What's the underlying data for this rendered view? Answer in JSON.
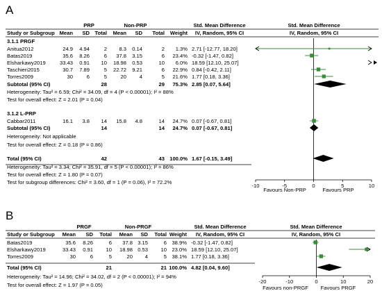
{
  "panels": [
    {
      "letter": "A",
      "group_headers": {
        "exp": "PRP",
        "ctl": "Non-PRP",
        "smd": "Std. Mean Difference",
        "plot": "Std. Mean Difference"
      },
      "col_headers": {
        "study": "Study or Subgroup",
        "mean_e": "Mean",
        "sd_e": "SD",
        "total_e": "Total",
        "mean_c": "Mean",
        "sd_c": "SD",
        "total_c": "Total",
        "weight": "Weight",
        "ci": "IV, Random, 95% CI",
        "plot_ci": "IV, Random, 95% CI"
      },
      "subgroups": [
        {
          "title": "3.1.1 PRGF",
          "studies": [
            {
              "name": "Anitua2012",
              "mean_e": "24.9",
              "sd_e": "4.94",
              "total_e": "2",
              "mean_c": "8.3",
              "sd_c": "0.14",
              "total_c": "2",
              "weight": "1.3%",
              "ci": "2.71 [-12.77, 18.20]"
            },
            {
              "name": "Batas2019",
              "mean_e": "35.6",
              "sd_e": "8.26",
              "total_e": "6",
              "mean_c": "37.8",
              "sd_c": "3.15",
              "total_c": "6",
              "weight": "23.4%",
              "ci": "-0.32 [-1.47, 0.82]"
            },
            {
              "name": "Elsharkawy2019",
              "mean_e": "33.43",
              "sd_e": "0.91",
              "total_e": "10",
              "mean_c": "18.98",
              "sd_c": "0.53",
              "total_c": "10",
              "weight": "6.0%",
              "ci": "18.59 [12.10, 25.07]"
            },
            {
              "name": "Taschieri2015",
              "mean_e": "30.7",
              "sd_e": "7.89",
              "total_e": "5",
              "mean_c": "22.72",
              "sd_c": "9.21",
              "total_c": "6",
              "weight": "22.9%",
              "ci": "0.84 [-0.42, 2.11]"
            },
            {
              "name": "Torres2009",
              "mean_e": "30",
              "sd_e": "6",
              "total_e": "5",
              "mean_c": "20",
              "sd_c": "4",
              "total_c": "5",
              "weight": "21.6%",
              "ci": "1.77 [0.18, 3.36]"
            }
          ],
          "subtotal": {
            "label": "Subtotal (95% CI)",
            "total_e": "28",
            "total_c": "29",
            "weight": "75.3%",
            "ci": "2.85 [0.07, 5.64]"
          },
          "heterogeneity": "Heterogeneity: Tau² = 6.59; Chi² = 34.09, df = 4 (P < 0.00001); I² = 88%",
          "overall_test": "Test for overall effect: Z = 2.01 (P = 0.04)"
        },
        {
          "title": "3.1.2 L-PRP",
          "studies": [
            {
              "name": "Cabbar2011",
              "mean_e": "16.1",
              "sd_e": "3.8",
              "total_e": "14",
              "mean_c": "15.8",
              "sd_c": "4.8",
              "total_c": "14",
              "weight": "24.7%",
              "ci": "0.07 [-0.67, 0.81]"
            }
          ],
          "subtotal": {
            "label": "Subtotal (95% CI)",
            "total_e": "14",
            "total_c": "14",
            "weight": "24.7%",
            "ci": "0.07 [-0.67, 0.81]"
          },
          "heterogeneity": "Heterogeneity: Not applicable",
          "overall_test": "Test for overall effect: Z = 0.18 (P = 0.86)"
        }
      ],
      "total": {
        "label": "Total (95% CI)",
        "total_e": "42",
        "total_c": "43",
        "weight": "100.0%",
        "ci": "1.67 [-0.15, 3.49]"
      },
      "footer": [
        "Heterogeneity: Tau² = 3.34; Chi² = 35.91, df = 5 (P < 0.00001); I² = 86%",
        "Test for overall effect: Z = 1.80 (P = 0.07)",
        "Test for subgroup differences: Chi² = 3.60, df = 1 (P = 0.06), I² = 72.2%"
      ],
      "axis_ticks": [
        "-10",
        "-5",
        "0",
        "5",
        "10"
      ],
      "favours_left": "Favours Non-PRP",
      "favours_right": "Favours PRP"
    },
    {
      "letter": "B",
      "group_headers": {
        "exp": "PRGF",
        "ctl": "Non-PRGF",
        "smd": "Std. Mean Difference",
        "plot": "Std. Mean Difference"
      },
      "col_headers": {
        "study": "Study or Subgroup",
        "mean_e": "Mean",
        "sd_e": "SD",
        "total_e": "Total",
        "mean_c": "Mean",
        "sd_c": "SD",
        "total_c": "Total",
        "weight": "Weight",
        "ci": "IV, Random, 95% CI",
        "plot_ci": "IV, Random, 95% CI"
      },
      "studies": [
        {
          "name": "Batas2019",
          "mean_e": "35.6",
          "sd_e": "8.26",
          "total_e": "6",
          "mean_c": "37.8",
          "sd_c": "3.15",
          "total_c": "6",
          "weight": "38.9%",
          "ci": "-0.32 [-1.47, 0.82]"
        },
        {
          "name": "Elsharkawy2019",
          "mean_e": "33.43",
          "sd_e": "0.91",
          "total_e": "10",
          "mean_c": "18.98",
          "sd_c": "0.53",
          "total_c": "10",
          "weight": "23.0%",
          "ci": "18.59 [12.10, 25.07]"
        },
        {
          "name": "Torres2009",
          "mean_e": "30",
          "sd_e": "6",
          "total_e": "5",
          "mean_c": "20",
          "sd_c": "4",
          "total_c": "5",
          "weight": "38.1%",
          "ci": "1.77 [0.18, 3.36]"
        }
      ],
      "total": {
        "label": "Total (95% CI)",
        "total_e": "21",
        "total_c": "21",
        "weight": "100.0%",
        "ci": "4.82 [0.04, 9.60]"
      },
      "footer": [
        "Heterogeneity: Tau² = 14.96; Chi² = 34.02, df = 2 (P < 0.00001); I² = 94%",
        "Test for overall effect: Z = 1.97 (P = 0.05)"
      ],
      "axis_ticks": [
        "-20",
        "-10",
        "0",
        "10",
        "20"
      ],
      "favours_left": "Favours non-PRGF",
      "favours_right": "Favours PRGF"
    }
  ],
  "chart_data": [
    {
      "type": "forest",
      "xlim": [
        -10,
        10
      ],
      "ticks": [
        -10,
        -5,
        0,
        5,
        10
      ],
      "studies": [
        {
          "est": 2.71,
          "lo": -12.77,
          "hi": 18.2,
          "weight": 1.3
        },
        {
          "est": -0.32,
          "lo": -1.47,
          "hi": 0.82,
          "weight": 23.4
        },
        {
          "est": 18.59,
          "lo": 12.1,
          "hi": 25.07,
          "weight": 6.0
        },
        {
          "est": 0.84,
          "lo": -0.42,
          "hi": 2.11,
          "weight": 22.9
        },
        {
          "est": 1.77,
          "lo": 0.18,
          "hi": 3.36,
          "weight": 21.6
        },
        {
          "est": 0.07,
          "lo": -0.67,
          "hi": 0.81,
          "weight": 24.7
        }
      ],
      "diamonds": [
        {
          "est": 2.85,
          "lo": 0.07,
          "hi": 5.64
        },
        {
          "est": 0.07,
          "lo": -0.67,
          "hi": 0.81
        },
        {
          "est": 1.67,
          "lo": -0.15,
          "hi": 3.49
        }
      ]
    },
    {
      "type": "forest",
      "xlim": [
        -20,
        20
      ],
      "ticks": [
        -20,
        -10,
        0,
        10,
        20
      ],
      "studies": [
        {
          "est": -0.32,
          "lo": -1.47,
          "hi": 0.82,
          "weight": 38.9
        },
        {
          "est": 18.59,
          "lo": 12.1,
          "hi": 25.07,
          "weight": 23.0
        },
        {
          "est": 1.77,
          "lo": 0.18,
          "hi": 3.36,
          "weight": 38.1
        }
      ],
      "diamonds": [
        {
          "est": 4.82,
          "lo": 0.04,
          "hi": 9.6
        }
      ]
    }
  ],
  "colors": {
    "marker": "#3c8a3c",
    "diamond": "#000000",
    "rule": "#000000",
    "text": "#111111"
  }
}
